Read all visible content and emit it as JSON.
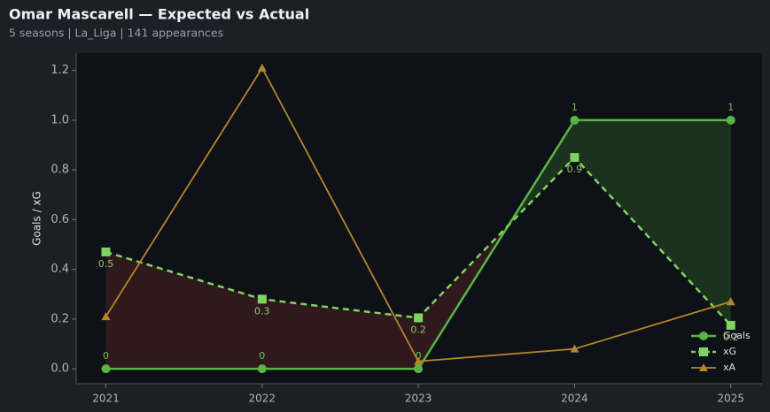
{
  "chart_data": {
    "type": "line",
    "title": "Omar Mascarell — Expected vs Actual",
    "subtitle": "5 seasons | La_Liga | 141 appearances",
    "y_label": "Goals / xG",
    "x": [
      2021,
      2022,
      2023,
      2024,
      2025
    ],
    "xlim": [
      2020.81,
      2025.2
    ],
    "xticks": [
      2021,
      2022,
      2023,
      2024,
      2025
    ],
    "ylim": [
      -0.06,
      1.27
    ],
    "yticks": [
      0.0,
      0.2,
      0.4,
      0.6,
      0.8,
      1.0,
      1.2
    ],
    "legend": "lower right",
    "series": [
      {
        "name": "Goals",
        "color": "#58b544",
        "values": [
          0,
          0,
          0,
          1,
          1
        ]
      },
      {
        "name": "xG",
        "color": "#7fd35f",
        "values": [
          0.47,
          0.28,
          0.205,
          0.85,
          0.175
        ],
        "value_labels": [
          "0.5",
          "0.3",
          "0.2",
          "0.9",
          "0.2"
        ]
      },
      {
        "name": "xA",
        "color": "#b5852a",
        "values": [
          0.21,
          1.21,
          0.03,
          0.08,
          0.27
        ]
      }
    ]
  }
}
